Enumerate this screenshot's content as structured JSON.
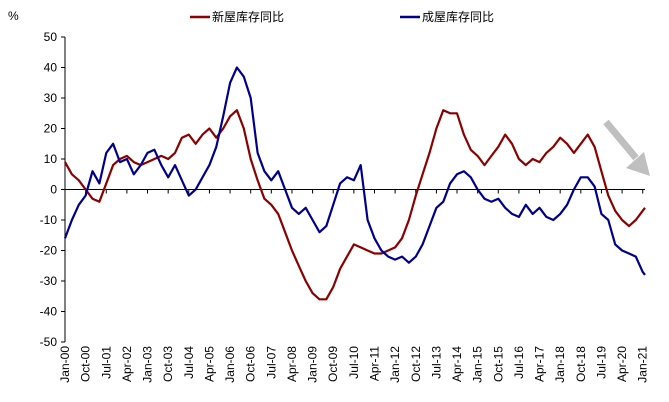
{
  "chart_data": {
    "type": "line",
    "y_unit": "%",
    "ylim": [
      -50,
      50
    ],
    "y_ticks": [
      50,
      40,
      30,
      20,
      10,
      0,
      -10,
      -20,
      -30,
      -40,
      -50
    ],
    "x_range": [
      "Jan-00",
      "Feb-21"
    ],
    "x_tick_labels": [
      "Jan-00",
      "Oct-00",
      "Jul-01",
      "Apr-02",
      "Jan-03",
      "Oct-03",
      "Jul-04",
      "Apr-05",
      "Jan-06",
      "Oct-06",
      "Jul-07",
      "Apr-08",
      "Jan-09",
      "Oct-09",
      "Jul-10",
      "Apr-11",
      "Jan-12",
      "Oct-12",
      "Jul-13",
      "Apr-14",
      "Jan-15",
      "Oct-15",
      "Jul-16",
      "Apr-17",
      "Jan-18",
      "Oct-18",
      "Jul-19",
      "Apr-20",
      "Jan-21"
    ],
    "grid": false,
    "legend_position": "top",
    "annotation": "downward-arrow",
    "series": [
      {
        "name": "新屋库存同比",
        "color": "#8B0000",
        "points": [
          [
            "Jan-00",
            9
          ],
          [
            "Apr-00",
            5
          ],
          [
            "Jul-00",
            3
          ],
          [
            "Oct-00",
            0
          ],
          [
            "Jan-01",
            -3
          ],
          [
            "Apr-01",
            -4
          ],
          [
            "Jul-01",
            2
          ],
          [
            "Oct-01",
            8
          ],
          [
            "Jan-02",
            10
          ],
          [
            "Apr-02",
            11
          ],
          [
            "Jul-02",
            9
          ],
          [
            "Oct-02",
            8
          ],
          [
            "Jan-03",
            9
          ],
          [
            "Apr-03",
            10
          ],
          [
            "Jul-03",
            11
          ],
          [
            "Oct-03",
            10
          ],
          [
            "Jan-04",
            12
          ],
          [
            "Apr-04",
            17
          ],
          [
            "Jul-04",
            18
          ],
          [
            "Oct-04",
            15
          ],
          [
            "Jan-05",
            18
          ],
          [
            "Apr-05",
            20
          ],
          [
            "Jul-05",
            17
          ],
          [
            "Oct-05",
            20
          ],
          [
            "Jan-06",
            24
          ],
          [
            "Apr-06",
            26
          ],
          [
            "Jul-06",
            20
          ],
          [
            "Oct-06",
            10
          ],
          [
            "Jan-07",
            3
          ],
          [
            "Apr-07",
            -3
          ],
          [
            "Jul-07",
            -5
          ],
          [
            "Oct-07",
            -8
          ],
          [
            "Jan-08",
            -14
          ],
          [
            "Apr-08",
            -20
          ],
          [
            "Jul-08",
            -25
          ],
          [
            "Oct-08",
            -30
          ],
          [
            "Jan-09",
            -34
          ],
          [
            "Apr-09",
            -36
          ],
          [
            "Jul-09",
            -36
          ],
          [
            "Oct-09",
            -32
          ],
          [
            "Jan-10",
            -26
          ],
          [
            "Apr-10",
            -22
          ],
          [
            "Jul-10",
            -18
          ],
          [
            "Oct-10",
            -19
          ],
          [
            "Jan-11",
            -20
          ],
          [
            "Apr-11",
            -21
          ],
          [
            "Jul-11",
            -21
          ],
          [
            "Oct-11",
            -20
          ],
          [
            "Jan-12",
            -19
          ],
          [
            "Apr-12",
            -16
          ],
          [
            "Jul-12",
            -10
          ],
          [
            "Oct-12",
            -2
          ],
          [
            "Jan-13",
            5
          ],
          [
            "Apr-13",
            12
          ],
          [
            "Jul-13",
            20
          ],
          [
            "Oct-13",
            26
          ],
          [
            "Jan-14",
            25
          ],
          [
            "Apr-14",
            25
          ],
          [
            "Jul-14",
            18
          ],
          [
            "Oct-14",
            13
          ],
          [
            "Jan-15",
            11
          ],
          [
            "Apr-15",
            8
          ],
          [
            "Jul-15",
            11
          ],
          [
            "Oct-15",
            14
          ],
          [
            "Jan-16",
            18
          ],
          [
            "Apr-16",
            15
          ],
          [
            "Jul-16",
            10
          ],
          [
            "Oct-16",
            8
          ],
          [
            "Jan-17",
            10
          ],
          [
            "Apr-17",
            9
          ],
          [
            "Jul-17",
            12
          ],
          [
            "Oct-17",
            14
          ],
          [
            "Jan-18",
            17
          ],
          [
            "Apr-18",
            15
          ],
          [
            "Jul-18",
            12
          ],
          [
            "Oct-18",
            15
          ],
          [
            "Jan-19",
            18
          ],
          [
            "Apr-19",
            14
          ],
          [
            "Jul-19",
            6
          ],
          [
            "Oct-19",
            -2
          ],
          [
            "Jan-20",
            -7
          ],
          [
            "Apr-20",
            -10
          ],
          [
            "Jul-20",
            -12
          ],
          [
            "Oct-20",
            -10
          ],
          [
            "Jan-21",
            -7
          ],
          [
            "Feb-21",
            -6
          ]
        ]
      },
      {
        "name": "成屋库存同比",
        "color": "#00008B",
        "points": [
          [
            "Jan-00",
            -16
          ],
          [
            "Apr-00",
            -10
          ],
          [
            "Jul-00",
            -5
          ],
          [
            "Oct-00",
            -2
          ],
          [
            "Jan-01",
            6
          ],
          [
            "Apr-01",
            2
          ],
          [
            "Jul-01",
            12
          ],
          [
            "Oct-01",
            15
          ],
          [
            "Jan-02",
            9
          ],
          [
            "Apr-02",
            10
          ],
          [
            "Jul-02",
            5
          ],
          [
            "Oct-02",
            8
          ],
          [
            "Jan-03",
            12
          ],
          [
            "Apr-03",
            13
          ],
          [
            "Jul-03",
            8
          ],
          [
            "Oct-03",
            4
          ],
          [
            "Jan-04",
            8
          ],
          [
            "Apr-04",
            3
          ],
          [
            "Jul-04",
            -2
          ],
          [
            "Oct-04",
            0
          ],
          [
            "Jan-05",
            4
          ],
          [
            "Apr-05",
            8
          ],
          [
            "Jul-05",
            14
          ],
          [
            "Oct-05",
            24
          ],
          [
            "Jan-06",
            35
          ],
          [
            "Apr-06",
            40
          ],
          [
            "Jul-06",
            37
          ],
          [
            "Oct-06",
            30
          ],
          [
            "Jan-07",
            12
          ],
          [
            "Apr-07",
            6
          ],
          [
            "Jul-07",
            3
          ],
          [
            "Oct-07",
            6
          ],
          [
            "Jan-08",
            0
          ],
          [
            "Apr-08",
            -6
          ],
          [
            "Jul-08",
            -8
          ],
          [
            "Oct-08",
            -6
          ],
          [
            "Jan-09",
            -10
          ],
          [
            "Apr-09",
            -14
          ],
          [
            "Jul-09",
            -12
          ],
          [
            "Oct-09",
            -5
          ],
          [
            "Jan-10",
            2
          ],
          [
            "Apr-10",
            4
          ],
          [
            "Jul-10",
            3
          ],
          [
            "Oct-10",
            8
          ],
          [
            "Jan-11",
            -10
          ],
          [
            "Apr-11",
            -16
          ],
          [
            "Jul-11",
            -20
          ],
          [
            "Oct-11",
            -22
          ],
          [
            "Jan-12",
            -23
          ],
          [
            "Apr-12",
            -22
          ],
          [
            "Jul-12",
            -24
          ],
          [
            "Oct-12",
            -22
          ],
          [
            "Jan-13",
            -18
          ],
          [
            "Apr-13",
            -12
          ],
          [
            "Jul-13",
            -6
          ],
          [
            "Oct-13",
            -4
          ],
          [
            "Jan-14",
            2
          ],
          [
            "Apr-14",
            5
          ],
          [
            "Jul-14",
            6
          ],
          [
            "Oct-14",
            4
          ],
          [
            "Jan-15",
            0
          ],
          [
            "Apr-15",
            -3
          ],
          [
            "Jul-15",
            -4
          ],
          [
            "Oct-15",
            -3
          ],
          [
            "Jan-16",
            -6
          ],
          [
            "Apr-16",
            -8
          ],
          [
            "Jul-16",
            -9
          ],
          [
            "Oct-16",
            -5
          ],
          [
            "Jan-17",
            -8
          ],
          [
            "Apr-17",
            -6
          ],
          [
            "Jul-17",
            -9
          ],
          [
            "Oct-17",
            -10
          ],
          [
            "Jan-18",
            -8
          ],
          [
            "Apr-18",
            -5
          ],
          [
            "Jul-18",
            0
          ],
          [
            "Oct-18",
            4
          ],
          [
            "Jan-19",
            4
          ],
          [
            "Apr-19",
            1
          ],
          [
            "Jul-19",
            -8
          ],
          [
            "Oct-19",
            -10
          ],
          [
            "Jan-20",
            -18
          ],
          [
            "Apr-20",
            -20
          ],
          [
            "Jul-20",
            -21
          ],
          [
            "Oct-20",
            -22
          ],
          [
            "Jan-21",
            -27
          ],
          [
            "Feb-21",
            -28
          ]
        ]
      }
    ]
  }
}
